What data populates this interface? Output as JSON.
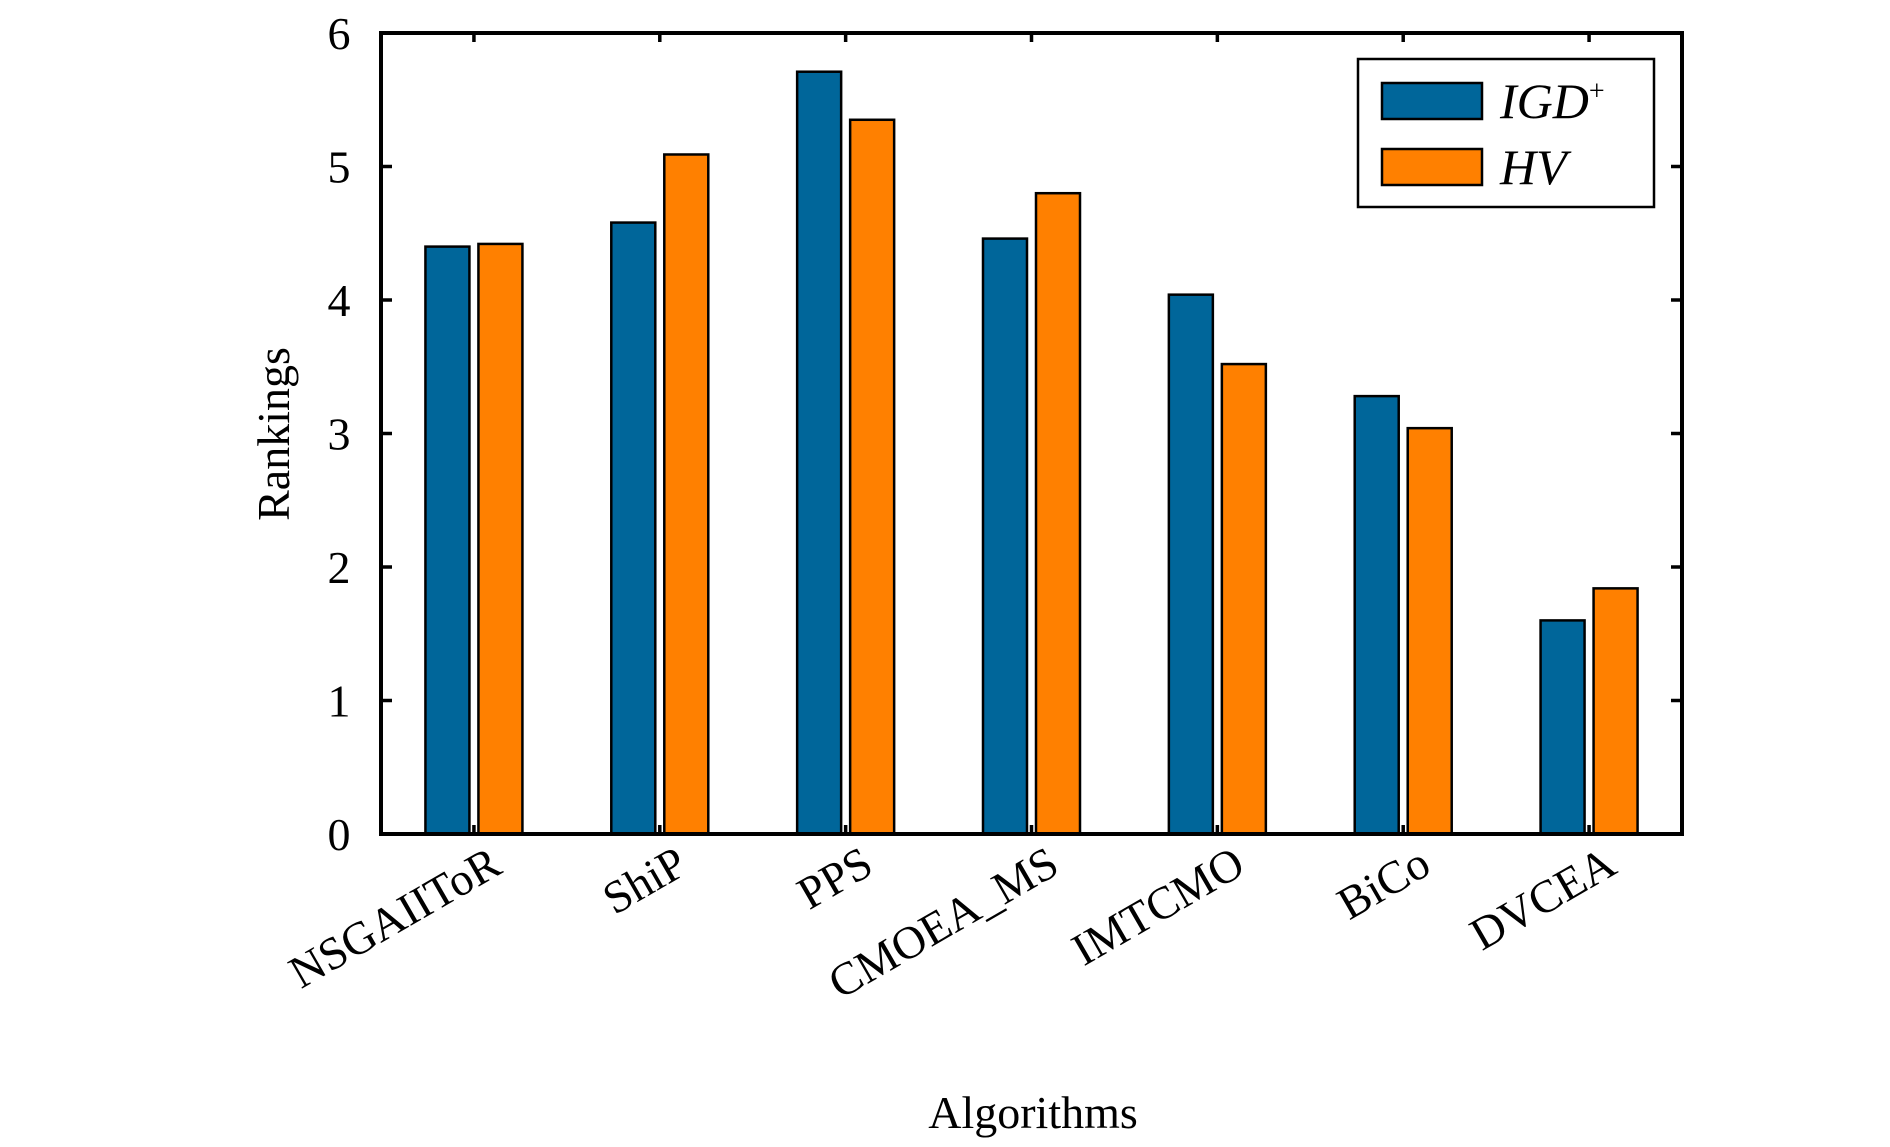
{
  "chart_data": {
    "type": "bar",
    "title": "",
    "xlabel": "Algorithms",
    "ylabel": "Rankings",
    "ylim": [
      0,
      6
    ],
    "yticks": [
      0,
      1,
      2,
      3,
      4,
      5,
      6
    ],
    "grid": false,
    "legend_position": "top-right",
    "categories": [
      "NSGAIIToR",
      "ShiP",
      "PPS",
      "CMOEA_MS",
      "IMTCMO",
      "BiCo",
      "DVCEA"
    ],
    "series": [
      {
        "name": "IGD",
        "name_superscript": "+",
        "color": "#00669A",
        "values": [
          4.4,
          4.58,
          5.71,
          4.46,
          4.04,
          3.28,
          1.6
        ]
      },
      {
        "name": "HV",
        "name_superscript": "",
        "color": "#FF8000",
        "values": [
          4.42,
          5.09,
          5.35,
          4.8,
          3.52,
          3.04,
          1.84
        ]
      }
    ]
  }
}
